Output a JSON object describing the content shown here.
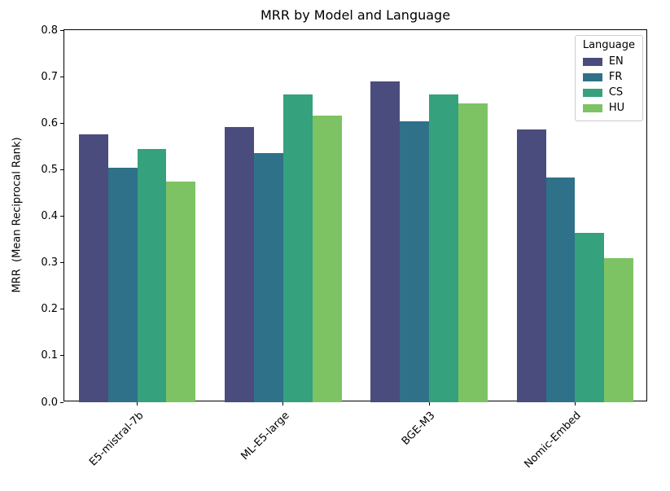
{
  "figure": {
    "title": "MRR by Model and Language",
    "ylabel": "MRR  (Mean Reciprocal Rank)"
  },
  "legend": {
    "title": "Language",
    "entries": [
      "EN",
      "FR",
      "CS",
      "HU"
    ]
  },
  "chart_data": {
    "type": "bar",
    "title": "MRR by Model and Language",
    "xlabel": "",
    "ylabel": "MRR  (Mean Reciprocal Rank)",
    "categories": [
      "E5-mistral-7b",
      "ML-E5-large",
      "BGE-M3",
      "Nomic-Embed"
    ],
    "series": [
      {
        "name": "EN",
        "color": "#4a4c7d",
        "values": [
          0.576,
          0.592,
          0.689,
          0.587
        ]
      },
      {
        "name": "FR",
        "color": "#2f7189",
        "values": [
          0.505,
          0.535,
          0.604,
          0.483
        ]
      },
      {
        "name": "CS",
        "color": "#35a17d",
        "values": [
          0.544,
          0.662,
          0.662,
          0.364
        ]
      },
      {
        "name": "HU",
        "color": "#7dc364",
        "values": [
          0.475,
          0.617,
          0.643,
          0.309
        ]
      }
    ],
    "ylim": [
      0.0,
      0.8
    ],
    "yticks": [
      0.0,
      0.1,
      0.2,
      0.3,
      0.4,
      0.5,
      0.6,
      0.7,
      0.8
    ],
    "ytick_label_format": "one_decimal",
    "grid": false,
    "bar_group_width": 0.8,
    "x_tick_rotation": 45,
    "legend_position": "upper right",
    "legend_title": "Language"
  }
}
